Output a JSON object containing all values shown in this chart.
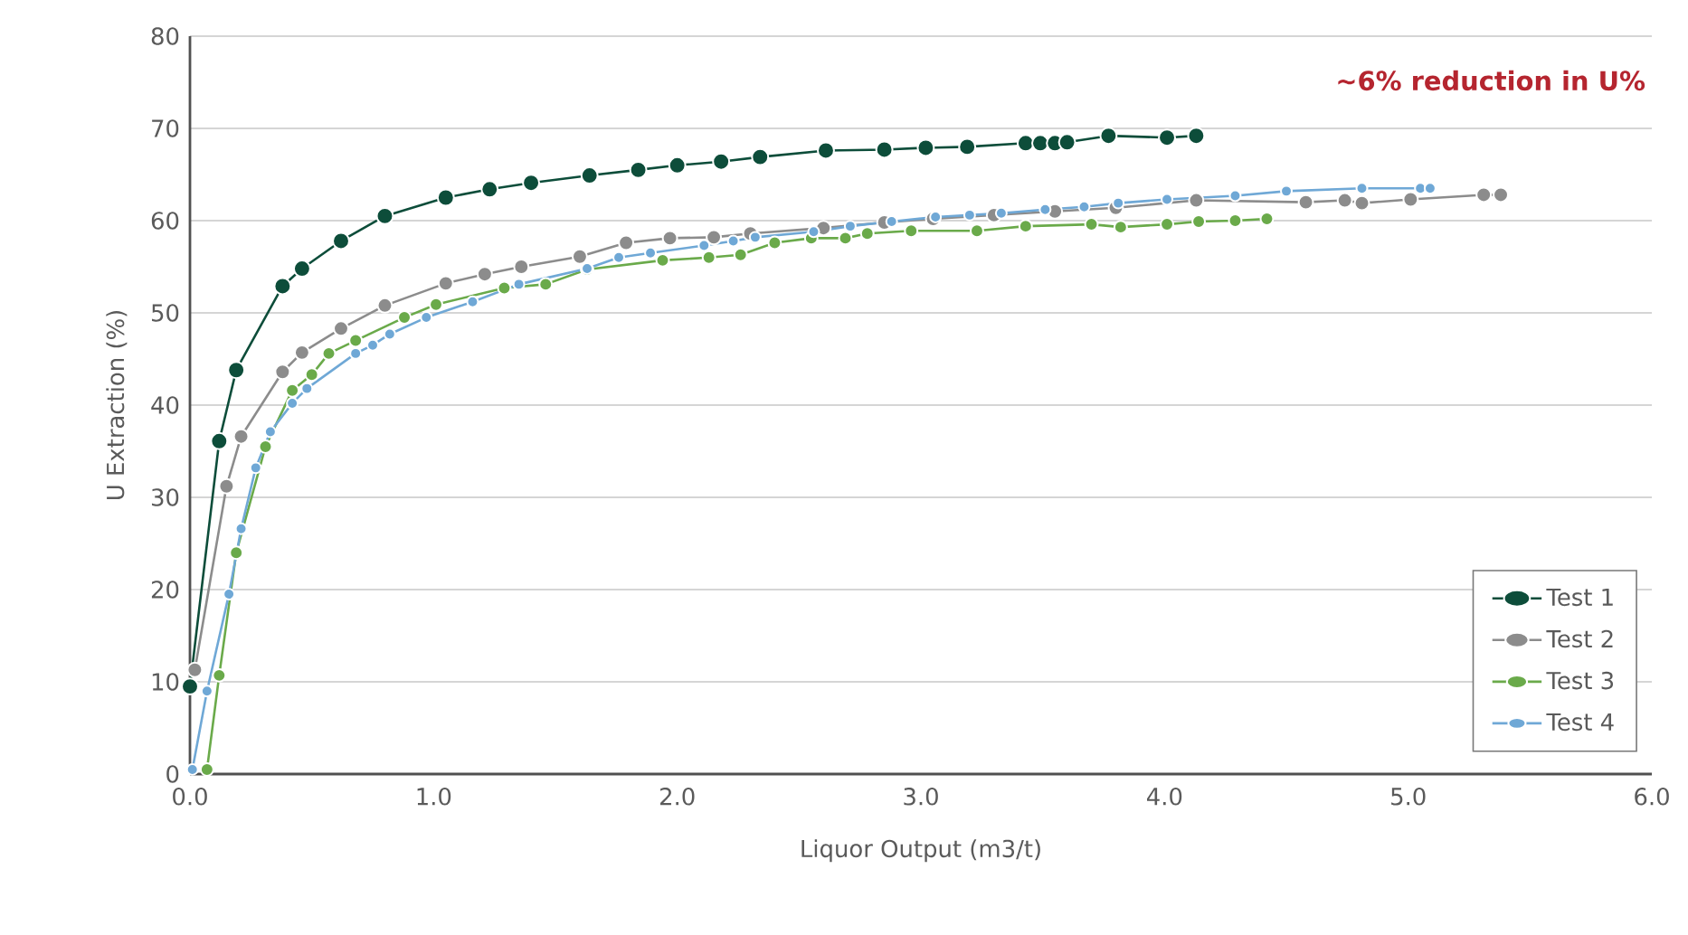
{
  "chart_data": {
    "type": "line",
    "xlabel": "Liquor Output (m3/t)",
    "ylabel": "U Extraction (%)",
    "annotations": [
      "~6% reduction in U%"
    ],
    "xlim": [
      0,
      6
    ],
    "ylim": [
      0,
      80
    ],
    "xticks": [
      {
        "value": 0,
        "label": "0.0"
      },
      {
        "value": 1,
        "label": "1.0"
      },
      {
        "value": 2,
        "label": "2.0"
      },
      {
        "value": 3,
        "label": "3.0"
      },
      {
        "value": 4,
        "label": "4.0"
      },
      {
        "value": 5,
        "label": "5.0"
      },
      {
        "value": 6,
        "label": "6.0"
      }
    ],
    "yticks": [
      0,
      10,
      20,
      30,
      40,
      50,
      60,
      70,
      80
    ],
    "grid": "y",
    "legend": "bottom right",
    "marker": "circle",
    "line_style": "solid",
    "series": [
      {
        "name": "Test 1",
        "color": "#0d4d3a",
        "x": [
          0.0,
          0.12,
          0.19,
          0.38,
          0.46,
          0.62,
          0.8,
          1.05,
          1.23,
          1.4,
          1.64,
          1.84,
          2.0,
          2.18,
          2.34,
          2.61,
          2.85,
          3.02,
          3.19,
          3.43,
          3.49,
          3.55,
          3.6,
          3.77,
          4.01,
          4.13
        ],
        "values": [
          9.5,
          36.1,
          43.8,
          52.9,
          54.8,
          57.8,
          60.5,
          62.5,
          63.4,
          64.1,
          64.9,
          65.5,
          66.0,
          66.4,
          66.9,
          67.6,
          67.7,
          67.9,
          68.0,
          68.4,
          68.4,
          68.4,
          68.5,
          69.2,
          69.0,
          69.2
        ]
      },
      {
        "name": "Test 2",
        "color": "#8c8c8c",
        "x": [
          0.02,
          0.15,
          0.21,
          0.38,
          0.46,
          0.62,
          0.8,
          1.05,
          1.21,
          1.36,
          1.6,
          1.79,
          1.97,
          2.15,
          2.3,
          2.6,
          2.85,
          3.05,
          3.3,
          3.55,
          3.8,
          4.13,
          4.58,
          4.74,
          4.81,
          5.01,
          5.31,
          5.38
        ],
        "values": [
          11.3,
          31.2,
          36.6,
          43.6,
          45.7,
          48.3,
          50.8,
          53.2,
          54.2,
          55.0,
          56.1,
          57.6,
          58.1,
          58.2,
          58.6,
          59.2,
          59.8,
          60.2,
          60.6,
          61.0,
          61.4,
          62.2,
          62.0,
          62.2,
          61.9,
          62.3,
          62.8,
          62.8
        ]
      },
      {
        "name": "Test 3",
        "color": "#6aaa4a",
        "x": [
          0.07,
          0.12,
          0.19,
          0.31,
          0.42,
          0.5,
          0.57,
          0.68,
          0.88,
          1.01,
          1.29,
          1.46,
          1.63,
          1.94,
          2.13,
          2.26,
          2.4,
          2.55,
          2.69,
          2.78,
          2.96,
          3.23,
          3.43,
          3.7,
          3.82,
          4.01,
          4.14,
          4.29,
          4.42
        ],
        "values": [
          0.5,
          10.7,
          24.0,
          35.5,
          41.6,
          43.3,
          45.6,
          47.0,
          49.5,
          50.9,
          52.7,
          53.1,
          54.7,
          55.7,
          56.0,
          56.3,
          57.6,
          58.1,
          58.1,
          58.6,
          58.9,
          58.9,
          59.4,
          59.6,
          59.3,
          59.6,
          59.9,
          60.0,
          60.2
        ]
      },
      {
        "name": "Test 4",
        "color": "#6fa8d6",
        "x": [
          0.01,
          0.07,
          0.16,
          0.21,
          0.27,
          0.33,
          0.42,
          0.48,
          0.68,
          0.75,
          0.82,
          0.97,
          1.16,
          1.35,
          1.63,
          1.76,
          1.89,
          2.11,
          2.23,
          2.32,
          2.56,
          2.71,
          2.88,
          3.06,
          3.2,
          3.33,
          3.51,
          3.67,
          3.81,
          4.01,
          4.29,
          4.5,
          4.81,
          5.05,
          5.09
        ],
        "values": [
          0.5,
          9.0,
          19.5,
          26.6,
          33.2,
          37.1,
          40.2,
          41.8,
          45.6,
          46.5,
          47.7,
          49.5,
          51.2,
          53.1,
          54.8,
          56.0,
          56.5,
          57.3,
          57.8,
          58.2,
          58.8,
          59.4,
          59.9,
          60.4,
          60.6,
          60.8,
          61.2,
          61.5,
          61.9,
          62.3,
          62.7,
          63.2,
          63.5,
          63.5,
          63.5
        ]
      }
    ]
  }
}
